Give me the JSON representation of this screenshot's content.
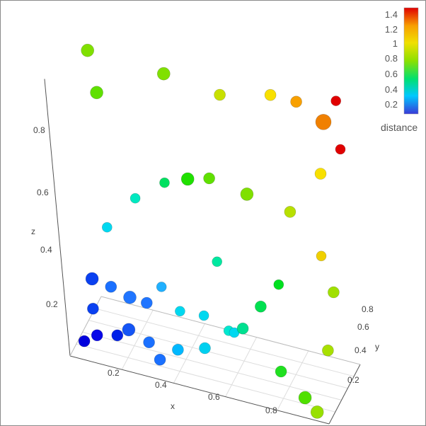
{
  "chart_data": {
    "type": "scatter",
    "dimensions": 3,
    "title": "",
    "axes": {
      "x": {
        "label": "x",
        "ticks": [
          "0.2",
          "0.4",
          "0.6",
          "0.8"
        ],
        "range": [
          0,
          1
        ]
      },
      "y": {
        "label": "y",
        "ticks": [
          "0.2",
          "0.4",
          "0.6",
          "0.8"
        ],
        "range": [
          0,
          1
        ]
      },
      "z": {
        "label": "z",
        "ticks": [
          "0.2",
          "0.4",
          "0.6",
          "0.8"
        ],
        "range": [
          0,
          1
        ]
      }
    },
    "grid": true,
    "colorbar": {
      "title": "distance",
      "ticks": [
        "0.2",
        "0.4",
        "0.6",
        "0.8",
        "1",
        "1.2",
        "1.4"
      ],
      "range": [
        0,
        1.5
      ],
      "colorscale": [
        "#3a3ad8",
        "#00c8ff",
        "#00e070",
        "#8ce000",
        "#f0e000",
        "#f8a000",
        "#e00000"
      ],
      "position": "right"
    },
    "points": [
      {
        "x": 0.05,
        "y": 0.08,
        "z": 0.05,
        "size": 8,
        "color": "#0000dd"
      },
      {
        "x": 0.1,
        "y": 0.1,
        "z": 0.08,
        "size": 8,
        "color": "#0808e8"
      },
      {
        "x": 0.18,
        "y": 0.1,
        "z": 0.1,
        "size": 8,
        "color": "#0020e8"
      },
      {
        "x": 0.22,
        "y": 0.15,
        "z": 0.12,
        "size": 9,
        "color": "#1555f5"
      },
      {
        "x": 0.3,
        "y": 0.12,
        "z": 0.1,
        "size": 8,
        "color": "#1a70ff"
      },
      {
        "x": 0.34,
        "y": 0.1,
        "z": 0.05,
        "size": 8,
        "color": "#1a70ff"
      },
      {
        "x": 0.4,
        "y": 0.2,
        "z": 0.08,
        "size": 8,
        "color": "#00b8ff"
      },
      {
        "x": 0.5,
        "y": 0.25,
        "z": 0.1,
        "size": 8,
        "color": "#00d0f0"
      },
      {
        "x": 0.05,
        "y": 0.4,
        "z": 0.1,
        "size": 8,
        "color": "#0a40f0"
      },
      {
        "x": 0.05,
        "y": 0.45,
        "z": 0.2,
        "size": 9,
        "color": "#0a40f0"
      },
      {
        "x": 0.1,
        "y": 0.6,
        "z": 0.15,
        "size": 8,
        "color": "#1a70ff"
      },
      {
        "x": 0.2,
        "y": 0.4,
        "z": 0.18,
        "size": 9,
        "color": "#2075ff"
      },
      {
        "x": 0.25,
        "y": 0.5,
        "z": 0.15,
        "size": 8,
        "color": "#2075ff"
      },
      {
        "x": 0.3,
        "y": 0.6,
        "z": 0.2,
        "size": 7,
        "color": "#20b0ff"
      },
      {
        "x": 0.35,
        "y": 0.7,
        "z": 0.1,
        "size": 7,
        "color": "#00d8f0"
      },
      {
        "x": 0.45,
        "y": 0.65,
        "z": 0.12,
        "size": 7,
        "color": "#00d8f0"
      },
      {
        "x": 0.55,
        "y": 0.6,
        "z": 0.1,
        "size": 7,
        "color": "#00e8d0"
      },
      {
        "x": 0.6,
        "y": 0.4,
        "z": 0.15,
        "size": 7,
        "color": "#00d8f0"
      },
      {
        "x": 0.65,
        "y": 0.3,
        "z": 0.2,
        "size": 8,
        "color": "#00e090"
      },
      {
        "x": 0.7,
        "y": 0.5,
        "z": 0.25,
        "size": 8,
        "color": "#00e050"
      },
      {
        "x": 0.5,
        "y": 0.8,
        "z": 0.3,
        "size": 7,
        "color": "#00e8a0"
      },
      {
        "x": 0.75,
        "y": 0.7,
        "z": 0.3,
        "size": 7,
        "color": "#00e020"
      },
      {
        "x": 0.8,
        "y": 0.2,
        "z": 0.1,
        "size": 8,
        "color": "#20e020"
      },
      {
        "x": 0.9,
        "y": 0.1,
        "z": 0.05,
        "size": 9,
        "color": "#50e000"
      },
      {
        "x": 0.95,
        "y": 0.05,
        "z": 0.02,
        "size": 9,
        "color": "#98e000"
      },
      {
        "x": 0.95,
        "y": 0.5,
        "z": 0.15,
        "size": 8,
        "color": "#a8e000"
      },
      {
        "x": 0.95,
        "y": 0.8,
        "z": 0.3,
        "size": 8,
        "color": "#a0e000"
      },
      {
        "x": 0.9,
        "y": 0.9,
        "z": 0.4,
        "size": 7,
        "color": "#f0d000"
      },
      {
        "x": 0.15,
        "y": 0.3,
        "z": 0.45,
        "size": 7,
        "color": "#00d8f0"
      },
      {
        "x": 0.25,
        "y": 0.45,
        "z": 0.55,
        "size": 7,
        "color": "#00e8c0"
      },
      {
        "x": 0.35,
        "y": 0.6,
        "z": 0.6,
        "size": 7,
        "color": "#00e060"
      },
      {
        "x": 0.45,
        "y": 0.55,
        "z": 0.65,
        "size": 9,
        "color": "#20e000"
      },
      {
        "x": 0.55,
        "y": 0.45,
        "z": 0.7,
        "size": 8,
        "color": "#60e000"
      },
      {
        "x": 0.65,
        "y": 0.75,
        "z": 0.6,
        "size": 9,
        "color": "#80e000"
      },
      {
        "x": 0.8,
        "y": 0.85,
        "z": 0.55,
        "size": 8,
        "color": "#b8e000"
      },
      {
        "x": 0.92,
        "y": 0.95,
        "z": 0.7,
        "size": 8,
        "color": "#f8e000"
      },
      {
        "x": 0.1,
        "y": 0.7,
        "z": 0.85,
        "size": 9,
        "color": "#60e000"
      },
      {
        "x": 0.05,
        "y": 0.9,
        "z": 0.95,
        "size": 9,
        "color": "#80e000"
      },
      {
        "x": 0.35,
        "y": 0.85,
        "z": 0.95,
        "size": 9,
        "color": "#80e000"
      },
      {
        "x": 0.55,
        "y": 0.95,
        "z": 0.9,
        "size": 8,
        "color": "#c8e000"
      },
      {
        "x": 0.75,
        "y": 0.95,
        "z": 0.95,
        "size": 8,
        "color": "#f8e000"
      },
      {
        "x": 0.85,
        "y": 0.95,
        "z": 0.95,
        "size": 8,
        "color": "#f8a000"
      },
      {
        "x": 0.95,
        "y": 0.95,
        "z": 0.9,
        "size": 11,
        "color": "#f08000"
      },
      {
        "x": 1.0,
        "y": 1.0,
        "z": 0.98,
        "size": 7,
        "color": "#e00000"
      },
      {
        "x": 1.0,
        "y": 1.0,
        "z": 0.8,
        "size": 7,
        "color": "#e00000"
      }
    ]
  }
}
